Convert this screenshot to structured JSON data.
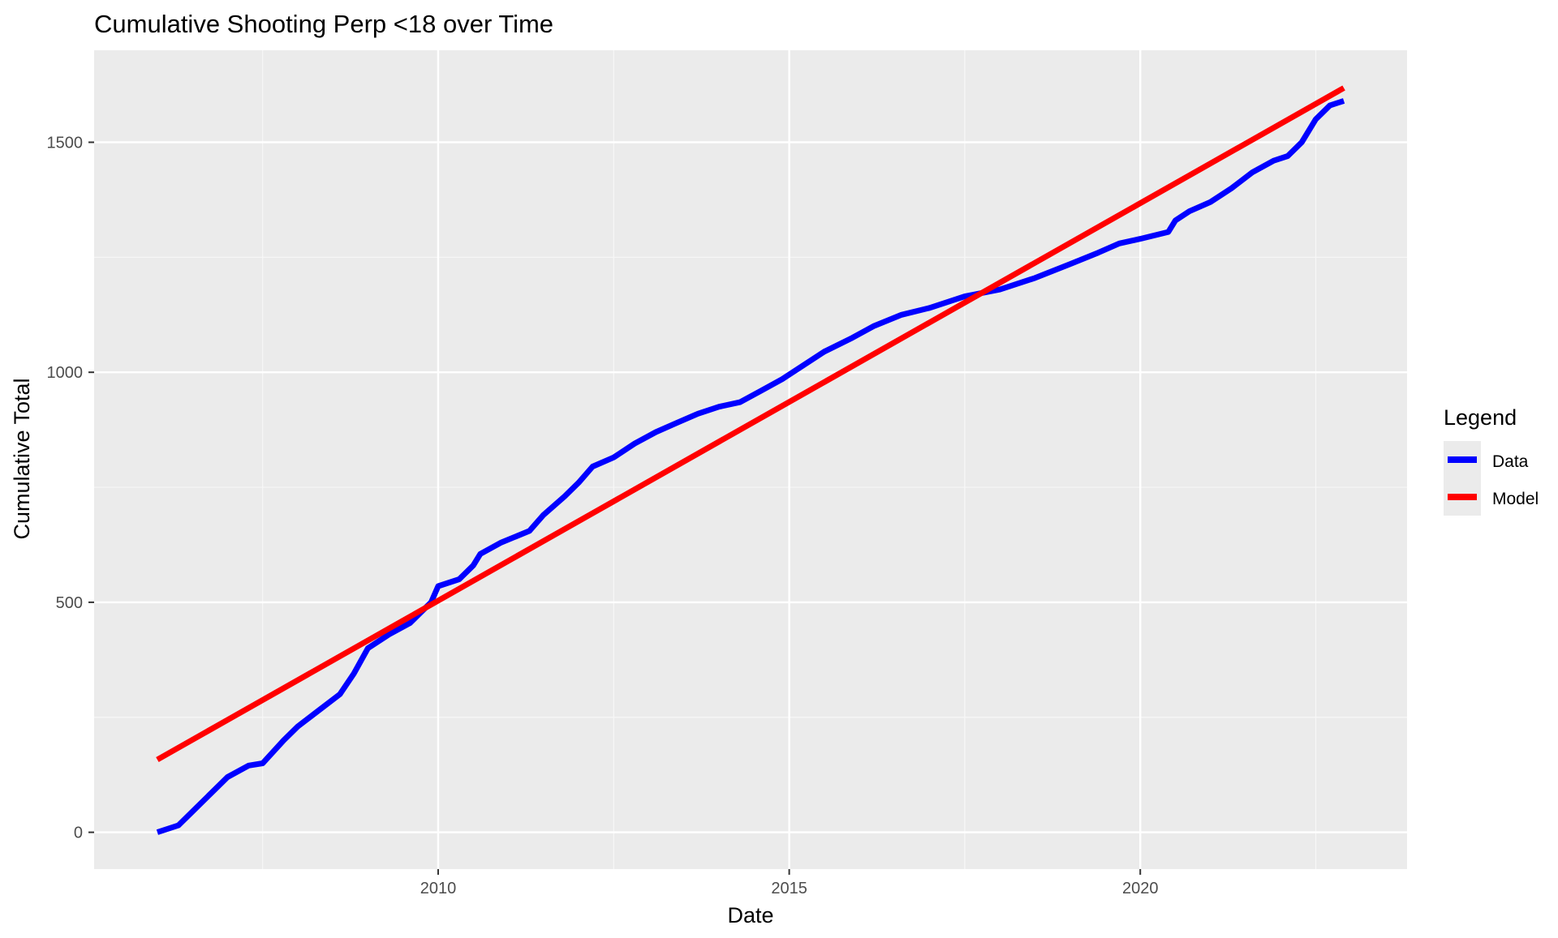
{
  "chart_data": {
    "type": "line",
    "title": "Cumulative Shooting Perp <18 over Time",
    "xlabel": "Date",
    "ylabel": "Cumulative Total",
    "x_ticks": [
      2010,
      2015,
      2020
    ],
    "y_ticks": [
      0,
      500,
      1000,
      1500
    ],
    "xlim": [
      2005.1,
      2023.8
    ],
    "ylim": [
      -80,
      1700
    ],
    "grid": true,
    "legend": {
      "title": "Legend",
      "position": "right"
    },
    "series": [
      {
        "name": "Data",
        "color": "#0000ff",
        "points": [
          [
            2006.0,
            0
          ],
          [
            2006.3,
            15
          ],
          [
            2006.5,
            45
          ],
          [
            2006.8,
            90
          ],
          [
            2007.0,
            120
          ],
          [
            2007.3,
            145
          ],
          [
            2007.5,
            150
          ],
          [
            2007.8,
            200
          ],
          [
            2008.0,
            230
          ],
          [
            2008.3,
            265
          ],
          [
            2008.6,
            300
          ],
          [
            2008.8,
            345
          ],
          [
            2009.0,
            400
          ],
          [
            2009.3,
            430
          ],
          [
            2009.6,
            455
          ],
          [
            2009.9,
            500
          ],
          [
            2010.0,
            535
          ],
          [
            2010.3,
            550
          ],
          [
            2010.5,
            580
          ],
          [
            2010.6,
            605
          ],
          [
            2010.9,
            630
          ],
          [
            2011.3,
            655
          ],
          [
            2011.5,
            690
          ],
          [
            2011.8,
            730
          ],
          [
            2012.0,
            760
          ],
          [
            2012.2,
            795
          ],
          [
            2012.5,
            815
          ],
          [
            2012.8,
            845
          ],
          [
            2013.1,
            870
          ],
          [
            2013.4,
            890
          ],
          [
            2013.7,
            910
          ],
          [
            2014.0,
            925
          ],
          [
            2014.3,
            935
          ],
          [
            2014.6,
            960
          ],
          [
            2014.9,
            985
          ],
          [
            2015.2,
            1015
          ],
          [
            2015.5,
            1045
          ],
          [
            2015.9,
            1075
          ],
          [
            2016.2,
            1100
          ],
          [
            2016.6,
            1125
          ],
          [
            2017.0,
            1140
          ],
          [
            2017.5,
            1165
          ],
          [
            2018.0,
            1180
          ],
          [
            2018.5,
            1205
          ],
          [
            2019.0,
            1235
          ],
          [
            2019.4,
            1260
          ],
          [
            2019.7,
            1280
          ],
          [
            2020.0,
            1290
          ],
          [
            2020.4,
            1305
          ],
          [
            2020.5,
            1330
          ],
          [
            2020.7,
            1350
          ],
          [
            2021.0,
            1370
          ],
          [
            2021.3,
            1400
          ],
          [
            2021.6,
            1435
          ],
          [
            2021.9,
            1460
          ],
          [
            2022.1,
            1470
          ],
          [
            2022.3,
            1500
          ],
          [
            2022.5,
            1550
          ],
          [
            2022.7,
            1580
          ],
          [
            2022.9,
            1590
          ]
        ]
      },
      {
        "name": "Model",
        "color": "#ff0000",
        "points": [
          [
            2006.0,
            158
          ],
          [
            2022.9,
            1618
          ]
        ]
      }
    ]
  }
}
